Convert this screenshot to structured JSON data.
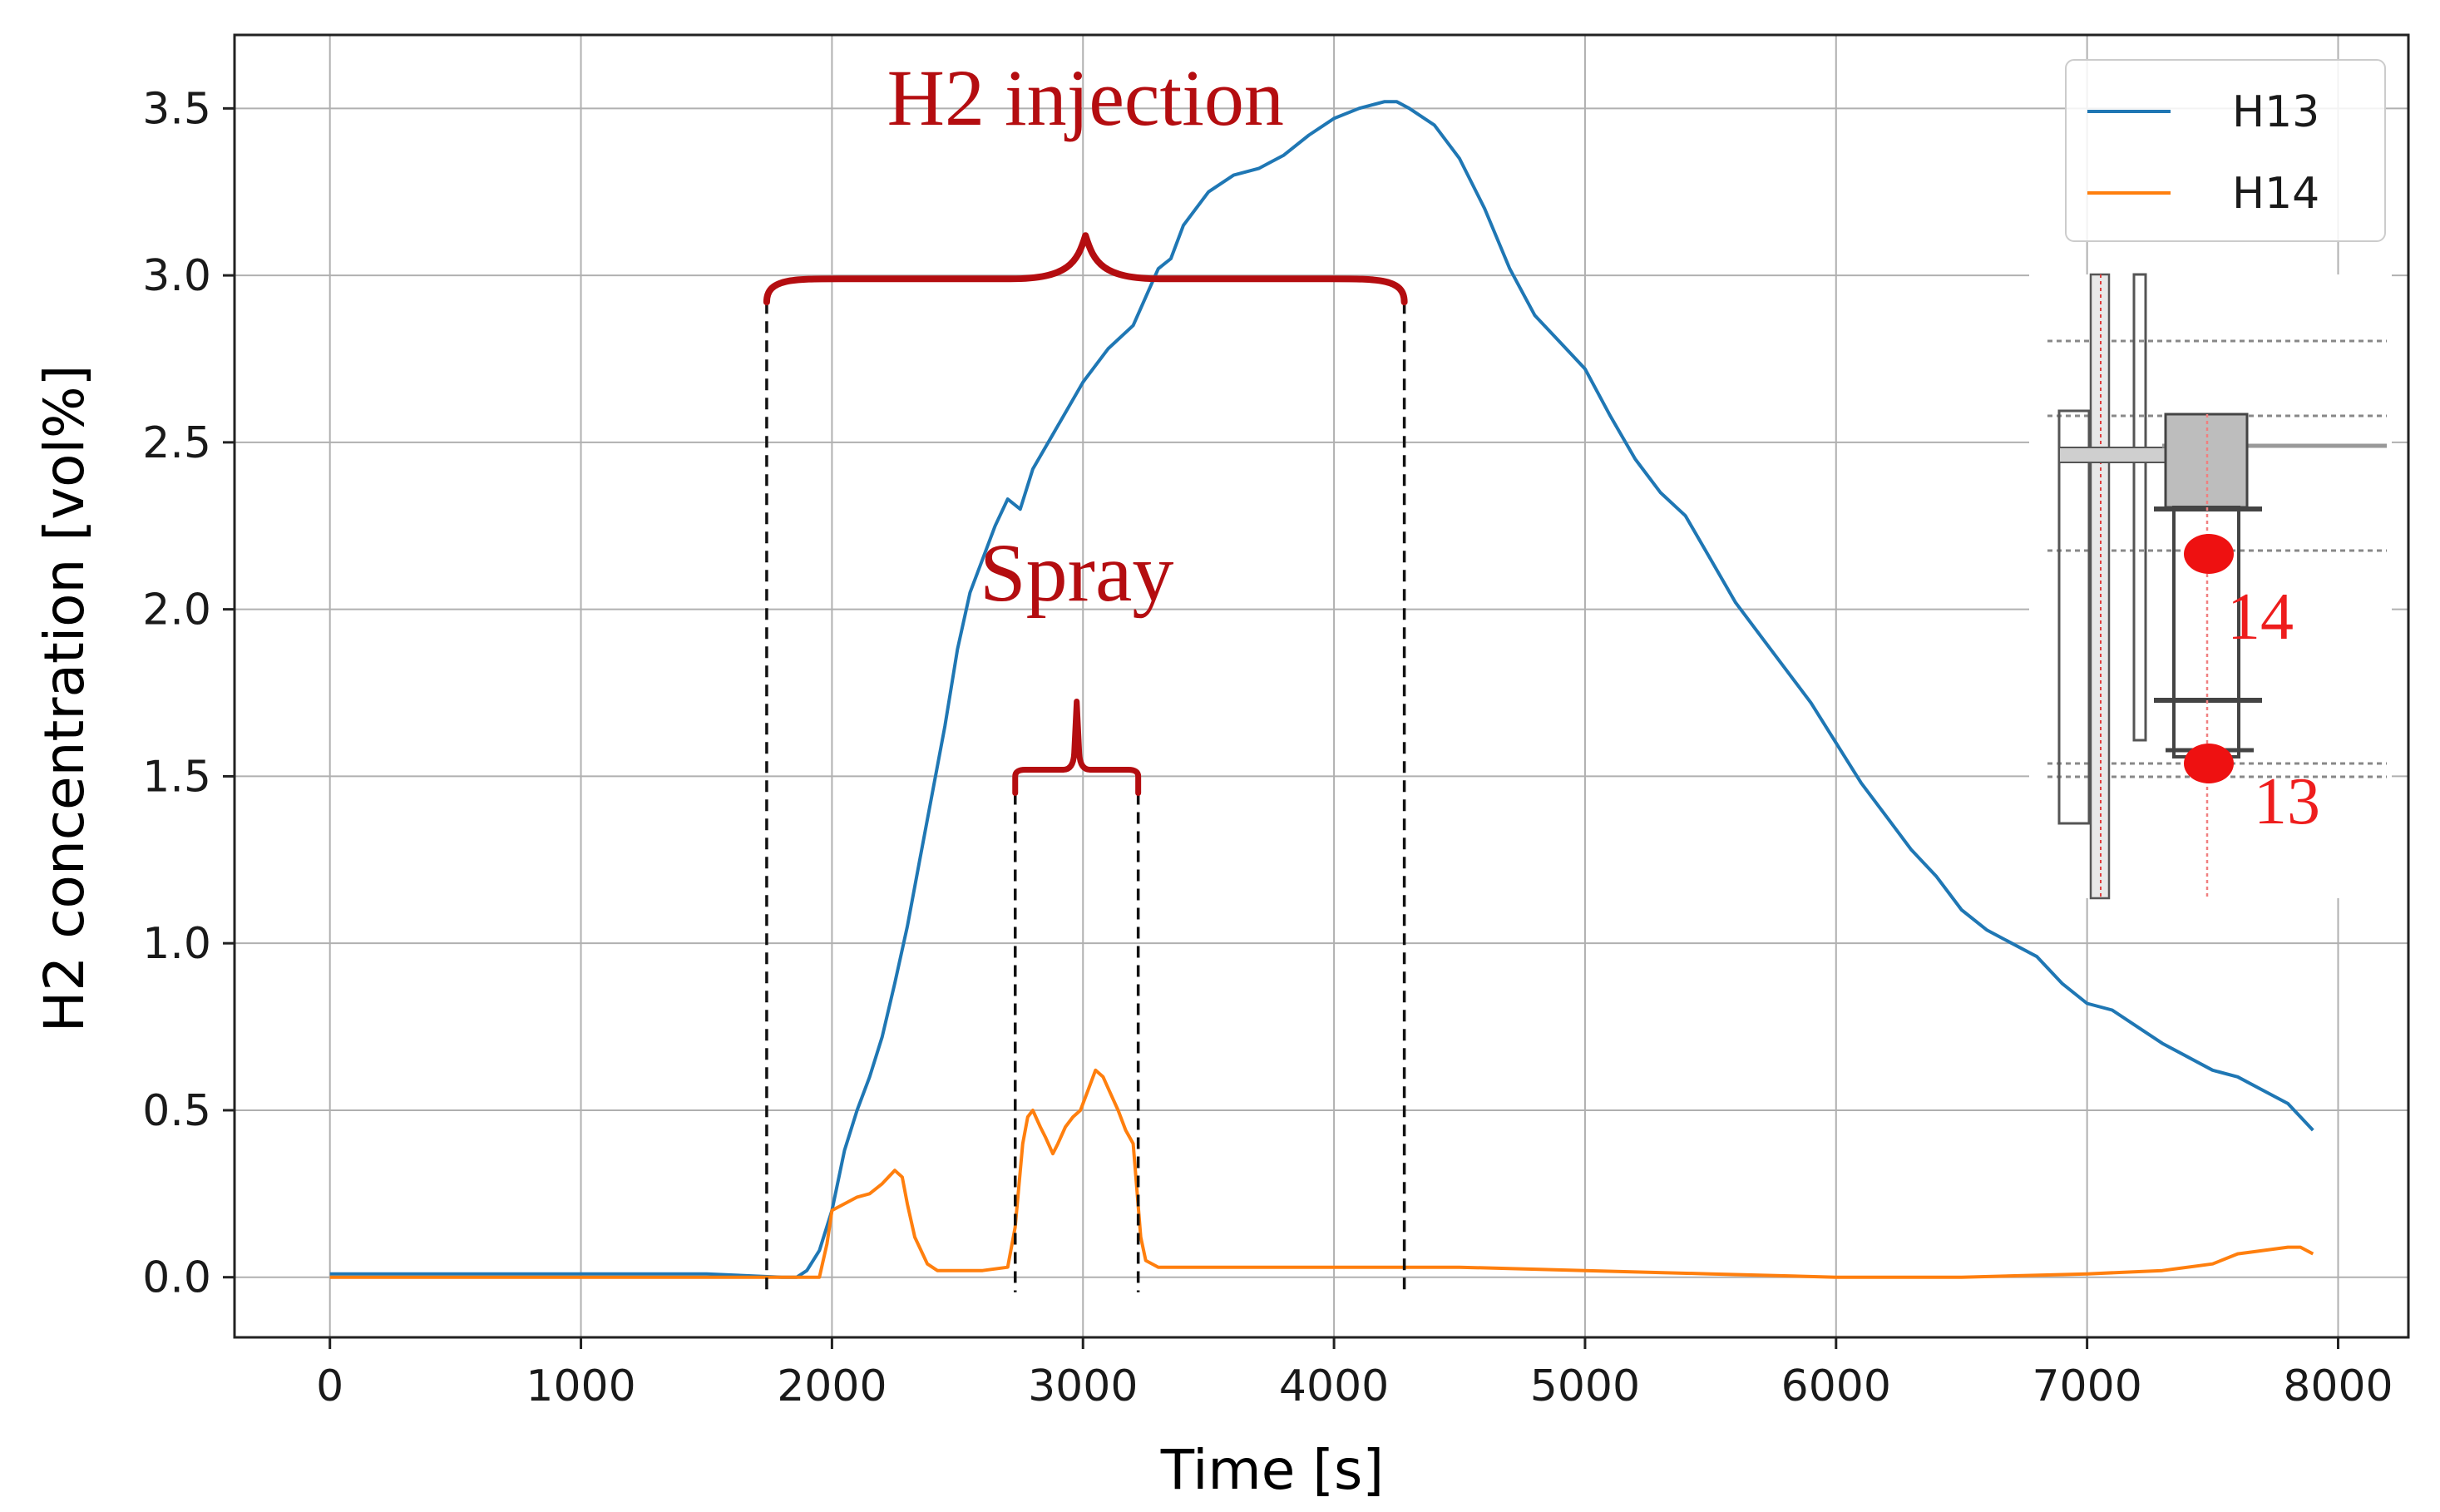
{
  "chart_data": {
    "type": "line",
    "xlabel": "Time [s]",
    "ylabel": "H2 concentration [vol%]",
    "xlim": [
      -380,
      8280
    ],
    "ylim": [
      -0.18,
      3.72
    ],
    "xticks": [
      0,
      1000,
      2000,
      3000,
      4000,
      5000,
      6000,
      7000,
      8000
    ],
    "xtick_labels": [
      "0",
      "1000",
      "2000",
      "3000",
      "4000",
      "5000",
      "6000",
      "7000",
      "8000"
    ],
    "yticks": [
      0.0,
      0.5,
      1.0,
      1.5,
      2.0,
      2.5,
      3.0,
      3.5
    ],
    "ytick_labels": [
      "0.0",
      "0.5",
      "1.0",
      "1.5",
      "2.0",
      "2.5",
      "3.0",
      "3.5"
    ],
    "grid": true,
    "legend_position": "top-right",
    "series": [
      {
        "name": "H13",
        "color": "#1f77b4",
        "x": [
          0,
          500,
          1000,
          1500,
          1800,
          1860,
          1900,
          1950,
          2000,
          2050,
          2100,
          2150,
          2200,
          2250,
          2300,
          2350,
          2400,
          2450,
          2500,
          2550,
          2600,
          2650,
          2700,
          2750,
          2800,
          2900,
          3000,
          3100,
          3200,
          3300,
          3350,
          3400,
          3500,
          3600,
          3700,
          3800,
          3900,
          4000,
          4100,
          4200,
          4250,
          4300,
          4400,
          4500,
          4600,
          4700,
          4800,
          4900,
          5000,
          5100,
          5200,
          5300,
          5400,
          5500,
          5600,
          5700,
          5800,
          5900,
          6000,
          6100,
          6200,
          6300,
          6400,
          6500,
          6600,
          6700,
          6800,
          6900,
          7000,
          7100,
          7200,
          7300,
          7400,
          7500,
          7600,
          7700,
          7800,
          7900
        ],
        "y": [
          0.01,
          0.01,
          0.01,
          0.01,
          0.0,
          0.0,
          0.02,
          0.08,
          0.2,
          0.38,
          0.5,
          0.6,
          0.72,
          0.88,
          1.05,
          1.25,
          1.45,
          1.65,
          1.88,
          2.05,
          2.15,
          2.25,
          2.33,
          2.3,
          2.42,
          2.55,
          2.68,
          2.78,
          2.85,
          3.02,
          3.05,
          3.15,
          3.25,
          3.3,
          3.32,
          3.36,
          3.42,
          3.47,
          3.5,
          3.52,
          3.52,
          3.5,
          3.45,
          3.35,
          3.2,
          3.02,
          2.88,
          2.8,
          2.72,
          2.58,
          2.45,
          2.35,
          2.28,
          2.15,
          2.02,
          1.92,
          1.82,
          1.72,
          1.6,
          1.48,
          1.38,
          1.28,
          1.2,
          1.1,
          1.04,
          1.0,
          0.96,
          0.88,
          0.82,
          0.8,
          0.75,
          0.7,
          0.66,
          0.62,
          0.6,
          0.56,
          0.52,
          0.44
        ]
      },
      {
        "name": "H14",
        "color": "#ff7f0e",
        "x": [
          0,
          500,
          1000,
          1500,
          1800,
          1950,
          1980,
          2000,
          2050,
          2100,
          2150,
          2200,
          2250,
          2280,
          2300,
          2330,
          2380,
          2420,
          2500,
          2600,
          2700,
          2730,
          2760,
          2780,
          2800,
          2830,
          2850,
          2880,
          2900,
          2930,
          2960,
          2990,
          3020,
          3050,
          3080,
          3110,
          3140,
          3170,
          3200,
          3230,
          3250,
          3300,
          3500,
          4000,
          4500,
          5000,
          5500,
          6000,
          6500,
          7000,
          7300,
          7500,
          7600,
          7700,
          7800,
          7850,
          7900
        ],
        "y": [
          0.0,
          0.0,
          0.0,
          0.0,
          0.0,
          0.0,
          0.1,
          0.2,
          0.22,
          0.24,
          0.25,
          0.28,
          0.32,
          0.3,
          0.22,
          0.12,
          0.04,
          0.02,
          0.02,
          0.02,
          0.03,
          0.15,
          0.4,
          0.48,
          0.5,
          0.45,
          0.42,
          0.37,
          0.4,
          0.45,
          0.48,
          0.5,
          0.56,
          0.62,
          0.6,
          0.55,
          0.5,
          0.44,
          0.4,
          0.12,
          0.05,
          0.03,
          0.03,
          0.03,
          0.03,
          0.02,
          0.01,
          0.0,
          0.0,
          0.01,
          0.02,
          0.04,
          0.07,
          0.08,
          0.09,
          0.09,
          0.07
        ]
      }
    ],
    "annotations": [
      {
        "text": "H2 injection",
        "x_start": 1740,
        "x_end": 4280,
        "y": 2.92
      },
      {
        "text": "Spray",
        "x_start": 2730,
        "x_end": 3220,
        "y": 1.45
      }
    ]
  },
  "inset": {
    "labels": [
      "14",
      "13"
    ],
    "marker_color": "#ee1111"
  }
}
